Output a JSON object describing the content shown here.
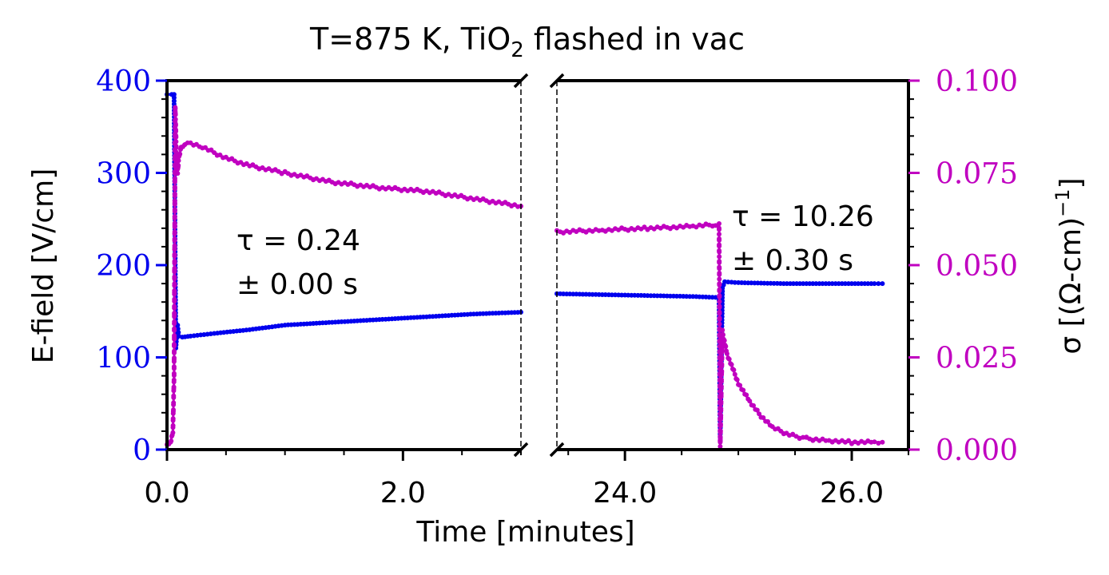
{
  "chart_data": {
    "type": "line",
    "title": {
      "prefix": "T=875 K, TiO",
      "sub": "2",
      "suffix": " flashed in vac"
    },
    "xlabel": "Time [minutes]",
    "ylabel_left": "E-field [V/cm]",
    "ylabel_right": {
      "text": "σ [(Ω-cm)",
      "sup": "−1",
      "close": "]"
    },
    "colors": {
      "efield": "#0000ee",
      "sigma": "#c000c0",
      "axes": "#000000"
    },
    "broken_x_axis": true,
    "panels": [
      {
        "xlim": [
          0.0,
          3.0
        ],
        "xticks": [
          0.0,
          2.0
        ],
        "xtick_labels": [
          "0.0",
          "2.0"
        ]
      },
      {
        "xlim": [
          23.4,
          26.5
        ],
        "xticks": [
          24.0,
          26.0
        ],
        "xtick_labels": [
          "24.0",
          "26.0"
        ]
      }
    ],
    "y_left": {
      "ylim": [
        0,
        400
      ],
      "ticks": [
        0,
        100,
        200,
        300,
        400
      ],
      "tick_labels": [
        "0",
        "100",
        "200",
        "300",
        "400"
      ]
    },
    "y_right": {
      "ylim": [
        0.0,
        0.1
      ],
      "ticks": [
        0.0,
        0.025,
        0.05,
        0.075,
        0.1
      ],
      "tick_labels": [
        "0.000",
        "0.025",
        "0.050",
        "0.075",
        "0.100"
      ]
    },
    "series": [
      {
        "name": "E-field",
        "axis": "left",
        "segments": [
          {
            "x": [
              0.0,
              0.04,
              0.06,
              0.075,
              0.09,
              0.1,
              0.13,
              0.2,
              0.4,
              0.7,
              1.0,
              1.4,
              1.8,
              2.2,
              2.6,
              3.0
            ],
            "y": [
              385,
              385,
              385,
              110,
              135,
              123,
              122,
              123,
              126,
              130,
              135,
              138,
              141,
              144,
              147,
              149
            ]
          },
          {
            "x": [
              23.4,
              23.8,
              24.2,
              24.6,
              24.8,
              24.83,
              24.84,
              24.86,
              24.88,
              25.0,
              25.4,
              25.8,
              26.2,
              26.27
            ],
            "y": [
              169,
              168,
              167,
              166,
              165,
              165,
              10,
              175,
              182,
              181,
              180,
              180,
              180,
              180
            ]
          }
        ]
      },
      {
        "name": "σ",
        "axis": "right",
        "segments": [
          {
            "x": [
              0.0,
              0.03,
              0.05,
              0.06,
              0.07,
              0.08,
              0.09,
              0.1,
              0.12,
              0.15,
              0.2,
              0.3,
              0.5,
              0.7,
              1.0,
              1.4,
              1.8,
              2.2,
              2.6,
              3.0
            ],
            "y": [
              0.001,
              0.002,
              0.005,
              0.02,
              0.093,
              0.08,
              0.075,
              0.079,
              0.082,
              0.083,
              0.083,
              0.082,
              0.079,
              0.077,
              0.075,
              0.0725,
              0.071,
              0.07,
              0.068,
              0.066
            ]
          },
          {
            "x": [
              23.4,
              23.8,
              24.2,
              24.6,
              24.8,
              24.83,
              24.84,
              24.86,
              24.9,
              25.0,
              25.1,
              25.2,
              25.3,
              25.45,
              25.6,
              25.8,
              26.0,
              26.2,
              26.27
            ],
            "y": [
              0.059,
              0.0595,
              0.06,
              0.0605,
              0.061,
              0.061,
              0.001,
              0.032,
              0.026,
              0.018,
              0.013,
              0.009,
              0.006,
              0.004,
              0.003,
              0.0025,
              0.002,
              0.002,
              0.002
            ]
          }
        ]
      }
    ],
    "annotations": [
      {
        "panel": 0,
        "line1": "τ = 0.24",
        "line2": "± 0.00 s"
      },
      {
        "panel": 1,
        "line1": "τ = 10.26",
        "line2": "± 0.30 s"
      }
    ]
  }
}
